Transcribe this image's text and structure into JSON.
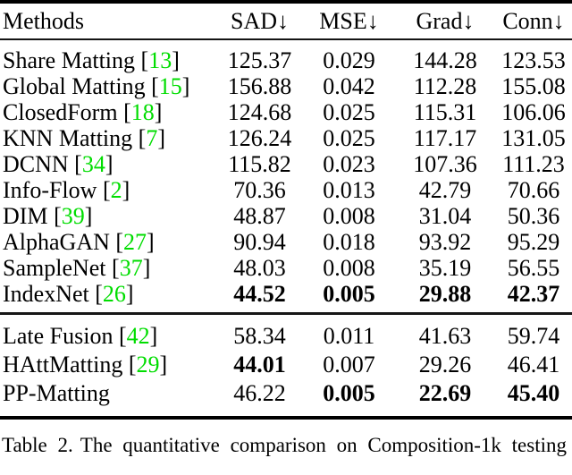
{
  "page": {
    "background": "#ffffff",
    "text_color": "#000000",
    "citation_color": "#00DD00"
  },
  "table": {
    "headers": [
      "Methods",
      "SAD↓",
      "MSE↓",
      "Grad↓",
      "Conn↓"
    ],
    "sections": [
      {
        "rows": [
          {
            "method": "Share Matting",
            "cite": "13",
            "values": [
              "125.37",
              "0.029",
              "144.28",
              "123.53"
            ],
            "bold": [
              false,
              false,
              false,
              false
            ]
          },
          {
            "method": "Global Matting",
            "cite": "15",
            "values": [
              "156.88",
              "0.042",
              "112.28",
              "155.08"
            ],
            "bold": [
              false,
              false,
              false,
              false
            ]
          },
          {
            "method": "ClosedForm",
            "cite": "18",
            "values": [
              "124.68",
              "0.025",
              "115.31",
              "106.06"
            ],
            "bold": [
              false,
              false,
              false,
              false
            ]
          },
          {
            "method": "KNN Matting",
            "cite": "7",
            "values": [
              "126.24",
              "0.025",
              "117.17",
              "131.05"
            ],
            "bold": [
              false,
              false,
              false,
              false
            ]
          },
          {
            "method": "DCNN",
            "cite": "34",
            "values": [
              "115.82",
              "0.023",
              "107.36",
              "111.23"
            ],
            "bold": [
              false,
              false,
              false,
              false
            ]
          },
          {
            "method": "Info-Flow",
            "cite": "2",
            "values": [
              "70.36",
              "0.013",
              "42.79",
              "70.66"
            ],
            "bold": [
              false,
              false,
              false,
              false
            ]
          },
          {
            "method": "DIM",
            "cite": "39",
            "values": [
              "48.87",
              "0.008",
              "31.04",
              "50.36"
            ],
            "bold": [
              false,
              false,
              false,
              false
            ]
          },
          {
            "method": "AlphaGAN",
            "cite": "27",
            "values": [
              "90.94",
              "0.018",
              "93.92",
              "95.29"
            ],
            "bold": [
              false,
              false,
              false,
              false
            ]
          },
          {
            "method": "SampleNet",
            "cite": "37",
            "values": [
              "48.03",
              "0.008",
              "35.19",
              "56.55"
            ],
            "bold": [
              false,
              false,
              false,
              false
            ]
          },
          {
            "method": "IndexNet",
            "cite": "26",
            "values": [
              "44.52",
              "0.005",
              "29.88",
              "42.37"
            ],
            "bold": [
              true,
              true,
              true,
              true
            ]
          }
        ]
      },
      {
        "rows": [
          {
            "method": "Late Fusion",
            "cite": "42",
            "values": [
              "58.34",
              "0.011",
              "41.63",
              "59.74"
            ],
            "bold": [
              false,
              false,
              false,
              false
            ]
          },
          {
            "method": "HAttMatting",
            "cite": "29",
            "values": [
              "44.01",
              "0.007",
              "29.26",
              "46.41"
            ],
            "bold": [
              true,
              false,
              false,
              false
            ]
          },
          {
            "method": "PP-Matting",
            "cite": null,
            "values": [
              "46.22",
              "0.005",
              "22.69",
              "45.40"
            ],
            "bold": [
              false,
              true,
              true,
              true
            ]
          }
        ]
      }
    ]
  },
  "caption": {
    "label": "Table 2.",
    "text": "The quantitative comparison on Composition-1k testing"
  }
}
